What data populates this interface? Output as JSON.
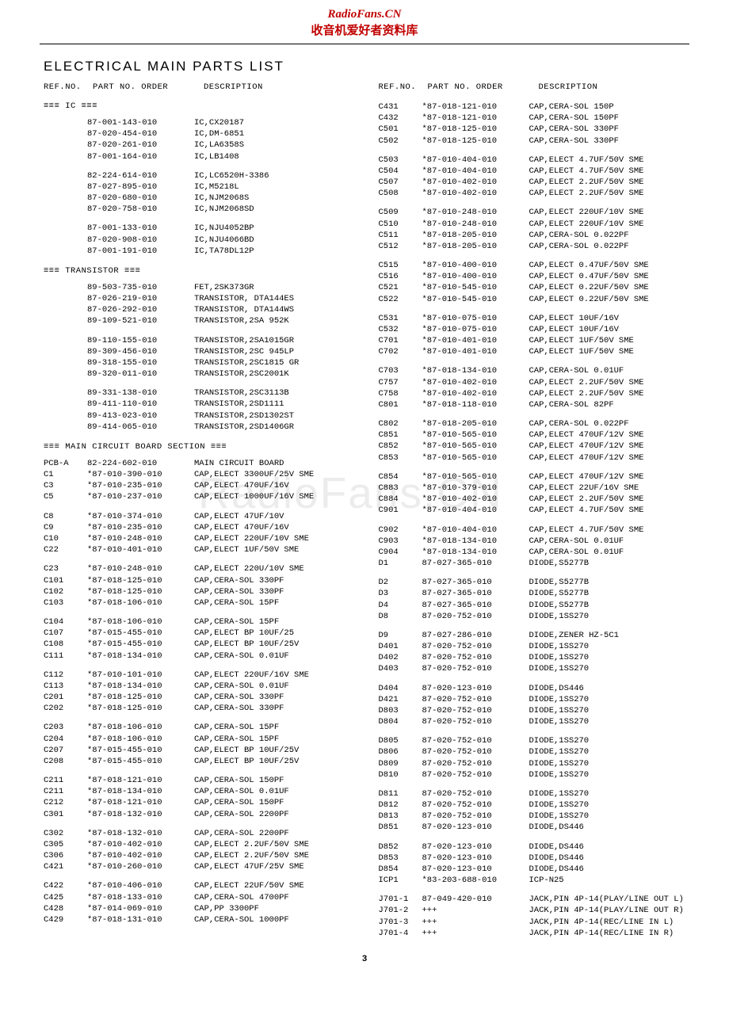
{
  "header": {
    "line1": "RadioFans.CN",
    "line2": "收音机爱好者资料库"
  },
  "title": "ELECTRICAL MAIN PARTS LIST",
  "col_header": {
    "ref": "REF.NO.",
    "part": "PART NO. ORDER",
    "desc": "DESCRIPTION"
  },
  "watermark": "RadioFans.CN",
  "pagenum": "3",
  "sections_left": [
    {
      "type": "hdr",
      "text": "≡≡≡ IC ≡≡≡"
    },
    {
      "type": "rows",
      "rows": [
        [
          "",
          "87-001-143-010",
          "IC,CX20187"
        ],
        [
          "",
          "87-020-454-010",
          "IC,DM-6851"
        ],
        [
          "",
          "87-020-261-010",
          "IC,LA6358S"
        ],
        [
          "",
          "87-001-164-010",
          "IC,LB1408"
        ]
      ]
    },
    {
      "type": "gap"
    },
    {
      "type": "rows",
      "rows": [
        [
          "",
          "82-224-614-010",
          "IC,LC6520H-3386"
        ],
        [
          "",
          "87-027-895-010",
          "IC,M5218L"
        ],
        [
          "",
          "87-020-680-010",
          "IC,NJM2068S"
        ],
        [
          "",
          "87-020-758-010",
          "IC,NJM2068SD"
        ]
      ]
    },
    {
      "type": "gap"
    },
    {
      "type": "rows",
      "rows": [
        [
          "",
          "87-001-133-010",
          "IC,NJU4052BP"
        ],
        [
          "",
          "87-020-908-010",
          "IC,NJU4066BD"
        ],
        [
          "",
          "87-001-191-010",
          "IC,TA78DL12P"
        ]
      ]
    },
    {
      "type": "hdr",
      "text": "≡≡≡ TRANSISTOR ≡≡≡"
    },
    {
      "type": "rows",
      "rows": [
        [
          "",
          "89-503-735-010",
          "FET,2SK373GR"
        ],
        [
          "",
          "87-026-219-010",
          "TRANSISTOR, DTA144ES"
        ],
        [
          "",
          "87-026-292-010",
          "TRANSISTOR, DTA144WS"
        ],
        [
          "",
          "89-109-521-010",
          "TRANSISTOR,2SA 952K"
        ]
      ]
    },
    {
      "type": "gap"
    },
    {
      "type": "rows",
      "rows": [
        [
          "",
          "89-110-155-010",
          "TRANSISTOR,2SA1015GR"
        ],
        [
          "",
          "89-309-456-010",
          "TRANSISTOR,2SC 945LP"
        ],
        [
          "",
          "89-318-155-010",
          "TRANSISTOR,2SC1815 GR"
        ],
        [
          "",
          "89-320-011-010",
          "TRANSISTOR,2SC2001K"
        ]
      ]
    },
    {
      "type": "gap"
    },
    {
      "type": "rows",
      "rows": [
        [
          "",
          "89-331-138-010",
          "TRANSISTOR,2SC3113B"
        ],
        [
          "",
          "89-411-110-010",
          "TRANSISTOR,2SD1111"
        ],
        [
          "",
          "89-413-023-010",
          "TRANSISTOR,2SD1302ST"
        ],
        [
          "",
          "89-414-065-010",
          "TRANSISTOR,2SD1406GR"
        ]
      ]
    },
    {
      "type": "hdr",
      "text": "≡≡≡ MAIN CIRCUIT BOARD SECTION ≡≡≡"
    },
    {
      "type": "rows",
      "rows": [
        [
          "PCB-A",
          "82-224-602-010",
          "MAIN CIRCUIT BOARD"
        ],
        [
          "C1",
          "*87-010-390-010",
          "CAP,ELECT 3300UF/25V SME"
        ],
        [
          "C3",
          "*87-010-235-010",
          "CAP,ELECT 470UF/16V"
        ],
        [
          "C5",
          "*87-010-237-010",
          "CAP,ELECT 1000UF/16V SME"
        ]
      ]
    },
    {
      "type": "gap"
    },
    {
      "type": "rows",
      "rows": [
        [
          "C8",
          "*87-010-374-010",
          "CAP,ELECT 47UF/10V"
        ],
        [
          "C9",
          "*87-010-235-010",
          "CAP,ELECT 470UF/16V"
        ],
        [
          "C10",
          "*87-010-248-010",
          "CAP,ELECT 220UF/10V SME"
        ],
        [
          "C22",
          "*87-010-401-010",
          "CAP,ELECT 1UF/50V SME"
        ]
      ]
    },
    {
      "type": "gap"
    },
    {
      "type": "rows",
      "rows": [
        [
          "C23",
          "*87-010-248-010",
          "CAP,ELECT 220U/10V SME"
        ],
        [
          "C101",
          "*87-018-125-010",
          "CAP,CERA-SOL 330PF"
        ],
        [
          "C102",
          "*87-018-125-010",
          "CAP,CERA-SOL 330PF"
        ],
        [
          "C103",
          "*87-018-106-010",
          "CAP,CERA-SOL 15PF"
        ]
      ]
    },
    {
      "type": "gap"
    },
    {
      "type": "rows",
      "rows": [
        [
          "C104",
          "*87-018-106-010",
          "CAP,CERA-SOL 15PF"
        ],
        [
          "C107",
          "*87-015-455-010",
          "CAP,ELECT BP 10UF/25"
        ],
        [
          "C108",
          "*87-015-455-010",
          "CAP,ELECT BP 10UF/25V"
        ],
        [
          "C111",
          "*87-018-134-010",
          "CAP,CERA-SOL 0.01UF"
        ]
      ]
    },
    {
      "type": "gap"
    },
    {
      "type": "rows",
      "rows": [
        [
          "C112",
          "*87-010-101-010",
          "CAP,ELECT 220UF/16V SME"
        ],
        [
          "C113",
          "*87-018-134-010",
          "CAP,CERA-SOL 0.01UF"
        ],
        [
          "C201",
          "*87-018-125-010",
          "CAP,CERA-SOL 330PF"
        ],
        [
          "C202",
          "*87-018-125-010",
          "CAP,CERA-SOL 330PF"
        ]
      ]
    },
    {
      "type": "gap"
    },
    {
      "type": "rows",
      "rows": [
        [
          "C203",
          "*87-018-106-010",
          "CAP,CERA-SOL 15PF"
        ],
        [
          "C204",
          "*87-018-106-010",
          "CAP,CERA-SOL 15PF"
        ],
        [
          "C207",
          "*87-015-455-010",
          "CAP,ELECT BP 10UF/25V"
        ],
        [
          "C208",
          "*87-015-455-010",
          "CAP,ELECT BP 10UF/25V"
        ]
      ]
    },
    {
      "type": "gap"
    },
    {
      "type": "rows",
      "rows": [
        [
          "C211",
          "*87-018-121-010",
          "CAP,CERA-SOL 150PF"
        ],
        [
          "C211",
          "*87-018-134-010",
          "CAP,CERA-SOL 0.01UF"
        ],
        [
          "C212",
          "*87-018-121-010",
          "CAP,CERA-SOL 150PF"
        ],
        [
          "C301",
          "*87-018-132-010",
          "CAP,CERA-SOL 2200PF"
        ]
      ]
    },
    {
      "type": "gap"
    },
    {
      "type": "rows",
      "rows": [
        [
          "C302",
          "*87-018-132-010",
          "CAP,CERA-SOL 2200PF"
        ],
        [
          "C305",
          "*87-010-402-010",
          "CAP,ELECT 2.2UF/50V SME"
        ],
        [
          "C306",
          "*87-010-402-010",
          "CAP,ELECT 2.2UF/50V SME"
        ],
        [
          "C421",
          "*87-010-260-010",
          "CAP,ELECT 47UF/25V SME"
        ]
      ]
    },
    {
      "type": "gap"
    },
    {
      "type": "rows",
      "rows": [
        [
          "C422",
          "*87-010-406-010",
          "CAP,ELECT 22UF/50V SME"
        ],
        [
          "C425",
          "*87-018-133-010",
          "CAP,CERA-SOL 4700PF"
        ],
        [
          "C428",
          "*87-014-069-010",
          "CAP,PP 3300PF"
        ],
        [
          "C429",
          "*87-018-131-010",
          "CAP,CERA-SOL 1000PF"
        ]
      ]
    }
  ],
  "sections_right": [
    {
      "type": "rows",
      "rows": [
        [
          "C431",
          "*87-018-121-010",
          "CAP,CERA-SOL 150P"
        ],
        [
          "C432",
          "*87-018-121-010",
          "CAP,CERA-SOL 150PF"
        ],
        [
          "C501",
          "*87-018-125-010",
          "CAP,CERA-SOL 330PF"
        ],
        [
          "C502",
          "*87-018-125-010",
          "CAP,CERA-SOL 330PF"
        ]
      ]
    },
    {
      "type": "gap"
    },
    {
      "type": "rows",
      "rows": [
        [
          "C503",
          "*87-010-404-010",
          "CAP,ELECT 4.7UF/50V SME"
        ],
        [
          "C504",
          "*87-010-404-010",
          "CAP,ELECT 4.7UF/50V SME"
        ],
        [
          "C507",
          "*87-010-402-010",
          "CAP,ELECT 2.2UF/50V SME"
        ],
        [
          "C508",
          "*87-010-402-010",
          "CAP,ELECT 2.2UF/50V SME"
        ]
      ]
    },
    {
      "type": "gap"
    },
    {
      "type": "rows",
      "rows": [
        [
          "C509",
          "*87-010-248-010",
          "CAP,ELECT 220UF/10V SME"
        ],
        [
          "C510",
          "*87-010-248-010",
          "CAP,ELECT 220UF/10V SME"
        ],
        [
          "C511",
          "*87-018-205-010",
          "CAP,CERA-SOL 0.022PF"
        ],
        [
          "C512",
          "*87-018-205-010",
          "CAP,CERA-SOL 0.022PF"
        ]
      ]
    },
    {
      "type": "gap"
    },
    {
      "type": "rows",
      "rows": [
        [
          "C515",
          "*87-010-400-010",
          "CAP,ELECT 0.47UF/50V SME"
        ],
        [
          "C516",
          "*87-010-400-010",
          "CAP,ELECT 0.47UF/50V SME"
        ],
        [
          "C521",
          "*87-010-545-010",
          "CAP,ELECT 0.22UF/50V SME"
        ],
        [
          "C522",
          "*87-010-545-010",
          "CAP,ELECT 0.22UF/50V SME"
        ]
      ]
    },
    {
      "type": "gap"
    },
    {
      "type": "rows",
      "rows": [
        [
          "C531",
          "*87-010-075-010",
          "CAP,ELECT 10UF/16V"
        ],
        [
          "C532",
          "*87-010-075-010",
          "CAP,ELECT 10UF/16V"
        ],
        [
          "C701",
          "*87-010-401-010",
          "CAP,ELECT 1UF/50V SME"
        ],
        [
          "C702",
          "*87-010-401-010",
          "CAP,ELECT 1UF/50V SME"
        ]
      ]
    },
    {
      "type": "gap"
    },
    {
      "type": "rows",
      "rows": [
        [
          "C703",
          "*87-018-134-010",
          "CAP,CERA-SOL 0.01UF"
        ],
        [
          "C757",
          "*87-010-402-010",
          "CAP,ELECT 2.2UF/50V SME"
        ],
        [
          "C758",
          "*87-010-402-010",
          "CAP,ELECT 2.2UF/50V SME"
        ],
        [
          "C801",
          "*87-018-118-010",
          "CAP,CERA-SOL 82PF"
        ]
      ]
    },
    {
      "type": "gap"
    },
    {
      "type": "rows",
      "rows": [
        [
          "C802",
          "*87-018-205-010",
          "CAP,CERA-SOL 0.022PF"
        ],
        [
          "C851",
          "*87-010-565-010",
          "CAP,ELECT 470UF/12V SME"
        ],
        [
          "C852",
          "*87-010-565-010",
          "CAP,ELECT 470UF/12V SME"
        ],
        [
          "C853",
          "*87-010-565-010",
          "CAP,ELECT 470UF/12V SME"
        ]
      ]
    },
    {
      "type": "gap"
    },
    {
      "type": "rows",
      "rows": [
        [
          "C854",
          "*87-010-565-010",
          "CAP,ELECT 470UF/12V SME"
        ],
        [
          "C883",
          "*87-010-379-010",
          "CAP,ELECT 22UF/16V SME"
        ],
        [
          "C884",
          "*87-010-402-010",
          "CAP,ELECT 2.2UF/50V SME"
        ],
        [
          "C901",
          "*87-010-404-010",
          "CAP,ELECT 4.7UF/50V SME"
        ]
      ]
    },
    {
      "type": "gap"
    },
    {
      "type": "rows",
      "rows": [
        [
          "C902",
          "*87-010-404-010",
          "CAP,ELECT 4.7UF/50V SME"
        ],
        [
          "C903",
          "*87-018-134-010",
          "CAP,CERA-SOL 0.01UF"
        ],
        [
          "C904",
          "*87-018-134-010",
          "CAP,CERA-SOL 0.01UF"
        ],
        [
          "D1",
          " 87-027-365-010",
          "DIODE,S5277B"
        ]
      ]
    },
    {
      "type": "gap"
    },
    {
      "type": "rows",
      "rows": [
        [
          "D2",
          " 87-027-365-010",
          "DIODE,S5277B"
        ],
        [
          "D3",
          " 87-027-365-010",
          "DIODE,S5277B"
        ],
        [
          "D4",
          " 87-027-365-010",
          "DIODE,S5277B"
        ],
        [
          "D8",
          " 87-020-752-010",
          "DIODE,1SS270"
        ]
      ]
    },
    {
      "type": "gap"
    },
    {
      "type": "rows",
      "rows": [
        [
          "D9",
          " 87-027-286-010",
          "DIODE,ZENER HZ-5C1"
        ],
        [
          "D401",
          " 87-020-752-010",
          "DIODE,1SS270"
        ],
        [
          "D402",
          " 87-020-752-010",
          "DIODE,1SS270"
        ],
        [
          "D403",
          " 87-020-752-010",
          "DIODE,1SS270"
        ]
      ]
    },
    {
      "type": "gap"
    },
    {
      "type": "rows",
      "rows": [
        [
          "D404",
          " 87-020-123-010",
          "DIODE,DS446"
        ],
        [
          "D421",
          " 87-020-752-010",
          "DIODE,1SS270"
        ],
        [
          "D803",
          " 87-020-752-010",
          "DIODE,1SS270"
        ],
        [
          "D804",
          " 87-020-752-010",
          "DIODE,1SS270"
        ]
      ]
    },
    {
      "type": "gap"
    },
    {
      "type": "rows",
      "rows": [
        [
          "D805",
          " 87-020-752-010",
          "DIODE,1SS270"
        ],
        [
          "D806",
          " 87-020-752-010",
          "DIODE,1SS270"
        ],
        [
          "D809",
          " 87-020-752-010",
          "DIODE,1SS270"
        ],
        [
          "D810",
          " 87-020-752-010",
          "DIODE,1SS270"
        ]
      ]
    },
    {
      "type": "gap"
    },
    {
      "type": "rows",
      "rows": [
        [
          "D811",
          " 87-020-752-010",
          "DIODE,1SS270"
        ],
        [
          "D812",
          " 87-020-752-010",
          "DIODE,1SS270"
        ],
        [
          "D813",
          " 87-020-752-010",
          "DIODE,1SS270"
        ],
        [
          "D851",
          " 87-020-123-010",
          "DIODE,DS446"
        ]
      ]
    },
    {
      "type": "gap"
    },
    {
      "type": "rows",
      "rows": [
        [
          "D852",
          " 87-020-123-010",
          "DIODE,DS446"
        ],
        [
          "D853",
          " 87-020-123-010",
          "DIODE,DS446"
        ],
        [
          "D854",
          " 87-020-123-010",
          "DIODE,DS446"
        ],
        [
          "ICP1",
          "*83-203-688-010",
          "ICP-N25"
        ]
      ]
    },
    {
      "type": "gap"
    },
    {
      "type": "rows",
      "rows": [
        [
          "J701-1",
          " 87-049-420-010",
          "JACK,PIN 4P-14(PLAY/LINE OUT L)"
        ],
        [
          "J701-2",
          "    +++",
          "JACK,PIN 4P-14(PLAY/LINE OUT R)"
        ],
        [
          "J701-3",
          "    +++",
          "JACK,PIN 4P-14(REC/LINE  IN L)"
        ],
        [
          "J701-4",
          "    +++",
          "JACK,PIN 4P-14(REC/LINE  IN R)"
        ]
      ]
    }
  ]
}
